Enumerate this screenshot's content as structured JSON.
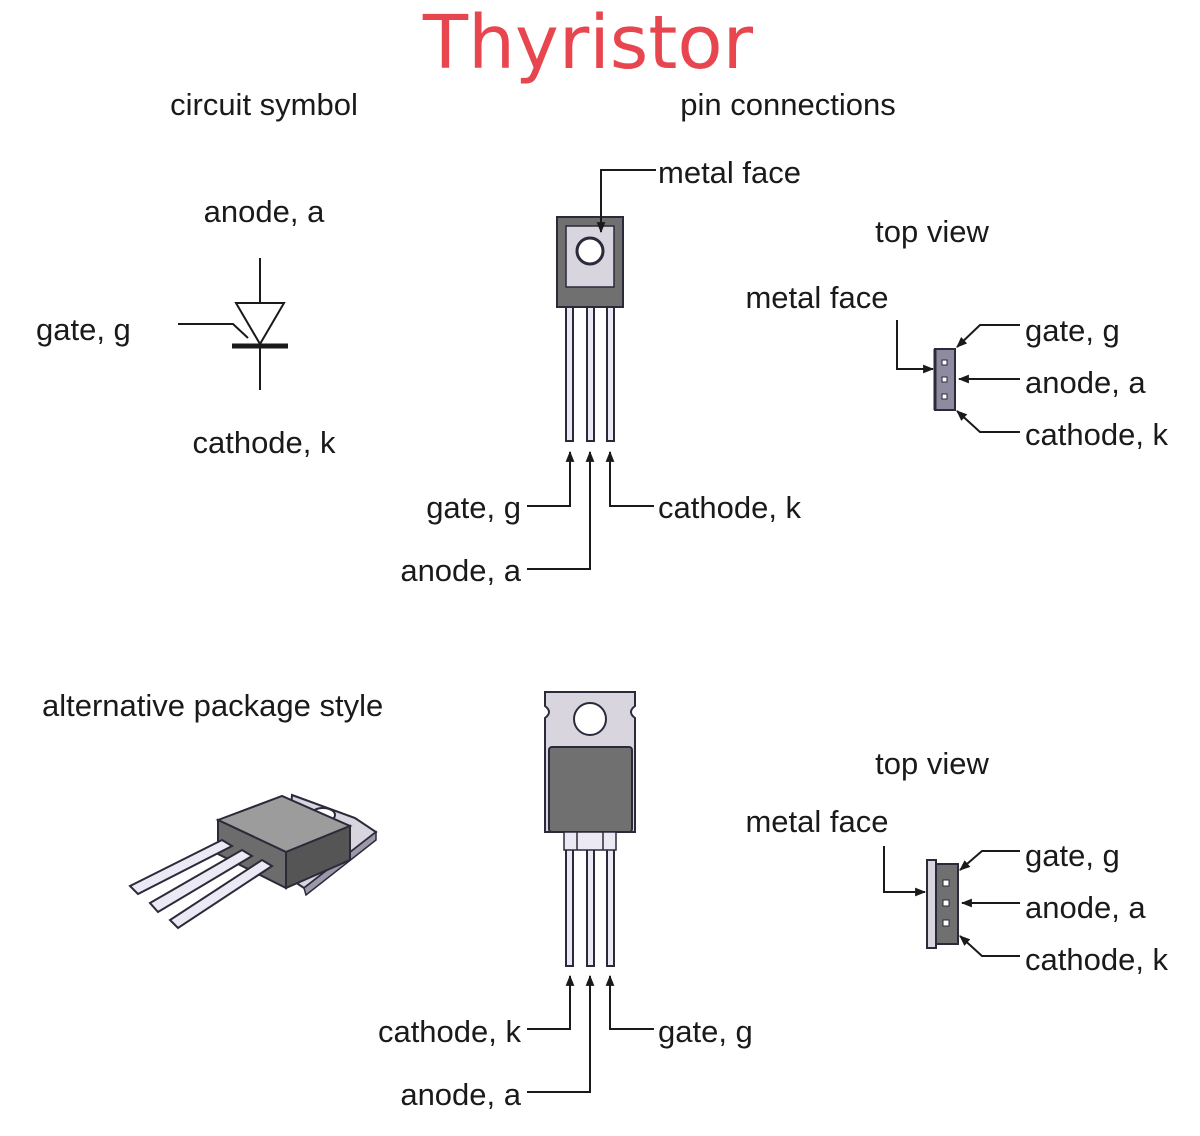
{
  "title": "Thyristor",
  "colors": {
    "title": "#e8464f",
    "body_dark": "#707070",
    "metal_light": "#d8d5de",
    "pin_fill": "#ece8f4",
    "side_view": "#8f8aa0"
  },
  "circuit_symbol": {
    "heading": "circuit symbol",
    "anode": "anode, a",
    "gate": "gate, g",
    "cathode": "cathode, k"
  },
  "pin_connections": {
    "heading": "pin connections",
    "metal_face": "metal face",
    "gate": "gate, g",
    "anode": "anode, a",
    "cathode": "cathode, k"
  },
  "top_view_1": {
    "heading": "top view",
    "metal_face": "metal face",
    "gate": "gate, g",
    "anode": "anode, a",
    "cathode": "cathode, k"
  },
  "alternative": {
    "heading": "alternative package style",
    "cathode": "cathode, k",
    "anode": "anode, a",
    "gate": "gate, g"
  },
  "top_view_2": {
    "heading": "top view",
    "metal_face": "metal face",
    "gate": "gate, g",
    "anode": "anode, a",
    "cathode": "cathode, k"
  }
}
